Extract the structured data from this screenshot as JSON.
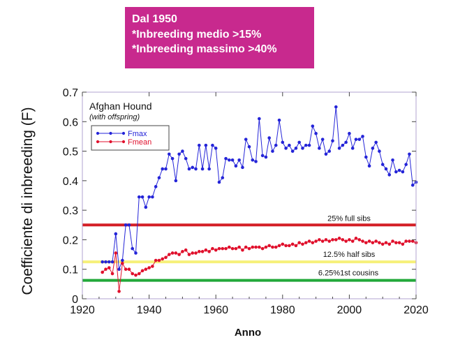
{
  "note": {
    "lines": [
      "Dal 1950",
      "*Inbreeding medio >15%",
      "*Inbreeding massimo >40%"
    ]
  },
  "chart_data": {
    "type": "line",
    "title": "Afghan Hound",
    "subtitle": "(with offspring)",
    "xlabel": "Anno",
    "ylabel": "Coefficiente di inbreeding (F)",
    "xlim": [
      1920,
      2020
    ],
    "ylim": [
      0,
      0.7
    ],
    "x_ticks": [
      1920,
      1940,
      1960,
      1980,
      2000,
      2020
    ],
    "y_ticks": [
      0,
      0.1,
      0.2,
      0.3,
      0.4,
      0.5,
      0.6,
      0.7
    ],
    "grid": false,
    "legend_position": "top-left",
    "series": [
      {
        "name": "Fmax",
        "color": "#2424d8",
        "points": [
          [
            1926,
            0.125
          ],
          [
            1927,
            0.125
          ],
          [
            1928,
            0.125
          ],
          [
            1929,
            0.125
          ],
          [
            1930,
            0.22
          ],
          [
            1931,
            0.1
          ],
          [
            1932,
            0.13
          ],
          [
            1933,
            0.25
          ],
          [
            1934,
            0.25
          ],
          [
            1935,
            0.17
          ],
          [
            1936,
            0.155
          ],
          [
            1937,
            0.345
          ],
          [
            1938,
            0.345
          ],
          [
            1939,
            0.31
          ],
          [
            1940,
            0.345
          ],
          [
            1941,
            0.345
          ],
          [
            1942,
            0.38
          ],
          [
            1943,
            0.41
          ],
          [
            1944,
            0.44
          ],
          [
            1945,
            0.44
          ],
          [
            1946,
            0.49
          ],
          [
            1947,
            0.475
          ],
          [
            1948,
            0.4
          ],
          [
            1949,
            0.49
          ],
          [
            1950,
            0.5
          ],
          [
            1951,
            0.475
          ],
          [
            1952,
            0.44
          ],
          [
            1953,
            0.445
          ],
          [
            1954,
            0.44
          ],
          [
            1955,
            0.52
          ],
          [
            1956,
            0.44
          ],
          [
            1957,
            0.52
          ],
          [
            1958,
            0.44
          ],
          [
            1959,
            0.52
          ],
          [
            1960,
            0.51
          ],
          [
            1961,
            0.395
          ],
          [
            1962,
            0.41
          ],
          [
            1963,
            0.475
          ],
          [
            1964,
            0.47
          ],
          [
            1965,
            0.47
          ],
          [
            1966,
            0.45
          ],
          [
            1967,
            0.47
          ],
          [
            1968,
            0.445
          ],
          [
            1969,
            0.54
          ],
          [
            1970,
            0.515
          ],
          [
            1971,
            0.47
          ],
          [
            1972,
            0.465
          ],
          [
            1973,
            0.61
          ],
          [
            1974,
            0.485
          ],
          [
            1975,
            0.48
          ],
          [
            1976,
            0.545
          ],
          [
            1977,
            0.5
          ],
          [
            1978,
            0.52
          ],
          [
            1979,
            0.605
          ],
          [
            1980,
            0.53
          ],
          [
            1981,
            0.51
          ],
          [
            1982,
            0.52
          ],
          [
            1983,
            0.5
          ],
          [
            1984,
            0.51
          ],
          [
            1985,
            0.53
          ],
          [
            1986,
            0.51
          ],
          [
            1987,
            0.52
          ],
          [
            1988,
            0.52
          ],
          [
            1989,
            0.585
          ],
          [
            1990,
            0.56
          ],
          [
            1991,
            0.51
          ],
          [
            1992,
            0.54
          ],
          [
            1993,
            0.49
          ],
          [
            1994,
            0.5
          ],
          [
            1995,
            0.535
          ],
          [
            1996,
            0.65
          ],
          [
            1997,
            0.51
          ],
          [
            1998,
            0.52
          ],
          [
            1999,
            0.53
          ],
          [
            2000,
            0.56
          ],
          [
            2001,
            0.51
          ],
          [
            2002,
            0.54
          ],
          [
            2003,
            0.54
          ],
          [
            2004,
            0.55
          ],
          [
            2005,
            0.48
          ],
          [
            2006,
            0.45
          ],
          [
            2007,
            0.51
          ],
          [
            2008,
            0.53
          ],
          [
            2009,
            0.5
          ],
          [
            2010,
            0.455
          ],
          [
            2011,
            0.44
          ],
          [
            2012,
            0.42
          ],
          [
            2013,
            0.47
          ],
          [
            2014,
            0.43
          ],
          [
            2015,
            0.435
          ],
          [
            2016,
            0.43
          ],
          [
            2017,
            0.455
          ],
          [
            2018,
            0.49
          ],
          [
            2019,
            0.385
          ],
          [
            2020,
            0.395
          ]
        ]
      },
      {
        "name": "Fmean",
        "color": "#e0102c",
        "points": [
          [
            1926,
            0.09
          ],
          [
            1927,
            0.1
          ],
          [
            1928,
            0.105
          ],
          [
            1929,
            0.085
          ],
          [
            1930,
            0.155
          ],
          [
            1931,
            0.025
          ],
          [
            1932,
            0.12
          ],
          [
            1933,
            0.1
          ],
          [
            1934,
            0.1
          ],
          [
            1935,
            0.085
          ],
          [
            1936,
            0.08
          ],
          [
            1937,
            0.085
          ],
          [
            1938,
            0.095
          ],
          [
            1939,
            0.1
          ],
          [
            1940,
            0.105
          ],
          [
            1941,
            0.11
          ],
          [
            1942,
            0.13
          ],
          [
            1943,
            0.13
          ],
          [
            1944,
            0.135
          ],
          [
            1945,
            0.14
          ],
          [
            1946,
            0.15
          ],
          [
            1947,
            0.155
          ],
          [
            1948,
            0.155
          ],
          [
            1949,
            0.15
          ],
          [
            1950,
            0.16
          ],
          [
            1951,
            0.165
          ],
          [
            1952,
            0.15
          ],
          [
            1953,
            0.155
          ],
          [
            1954,
            0.155
          ],
          [
            1955,
            0.16
          ],
          [
            1956,
            0.16
          ],
          [
            1957,
            0.165
          ],
          [
            1958,
            0.16
          ],
          [
            1959,
            0.17
          ],
          [
            1960,
            0.165
          ],
          [
            1961,
            0.17
          ],
          [
            1962,
            0.17
          ],
          [
            1963,
            0.17
          ],
          [
            1964,
            0.175
          ],
          [
            1965,
            0.17
          ],
          [
            1966,
            0.17
          ],
          [
            1967,
            0.175
          ],
          [
            1968,
            0.165
          ],
          [
            1969,
            0.175
          ],
          [
            1970,
            0.17
          ],
          [
            1971,
            0.175
          ],
          [
            1972,
            0.175
          ],
          [
            1973,
            0.175
          ],
          [
            1974,
            0.17
          ],
          [
            1975,
            0.175
          ],
          [
            1976,
            0.18
          ],
          [
            1977,
            0.175
          ],
          [
            1978,
            0.175
          ],
          [
            1979,
            0.18
          ],
          [
            1980,
            0.185
          ],
          [
            1981,
            0.18
          ],
          [
            1982,
            0.18
          ],
          [
            1983,
            0.185
          ],
          [
            1984,
            0.18
          ],
          [
            1985,
            0.19
          ],
          [
            1986,
            0.185
          ],
          [
            1987,
            0.19
          ],
          [
            1988,
            0.195
          ],
          [
            1989,
            0.19
          ],
          [
            1990,
            0.195
          ],
          [
            1991,
            0.2
          ],
          [
            1992,
            0.195
          ],
          [
            1993,
            0.2
          ],
          [
            1994,
            0.195
          ],
          [
            1995,
            0.2
          ],
          [
            1996,
            0.2
          ],
          [
            1997,
            0.205
          ],
          [
            1998,
            0.2
          ],
          [
            1999,
            0.195
          ],
          [
            2000,
            0.2
          ],
          [
            2001,
            0.195
          ],
          [
            2002,
            0.205
          ],
          [
            2003,
            0.2
          ],
          [
            2004,
            0.195
          ],
          [
            2005,
            0.19
          ],
          [
            2006,
            0.195
          ],
          [
            2007,
            0.19
          ],
          [
            2008,
            0.195
          ],
          [
            2009,
            0.19
          ],
          [
            2010,
            0.185
          ],
          [
            2011,
            0.19
          ],
          [
            2012,
            0.185
          ],
          [
            2013,
            0.195
          ],
          [
            2014,
            0.19
          ],
          [
            2015,
            0.19
          ],
          [
            2016,
            0.185
          ],
          [
            2017,
            0.195
          ],
          [
            2018,
            0.195
          ],
          [
            2019,
            0.195
          ],
          [
            2020,
            0.19
          ]
        ]
      }
    ],
    "reference_lines": [
      {
        "value": 0.25,
        "label": "25% full sibs",
        "color": "#d41f26"
      },
      {
        "value": 0.125,
        "label": "12.5% half sibs",
        "color": "#f6f07a"
      },
      {
        "value": 0.0625,
        "label": "6.25%1st cousins",
        "color": "#22a83a"
      }
    ]
  }
}
